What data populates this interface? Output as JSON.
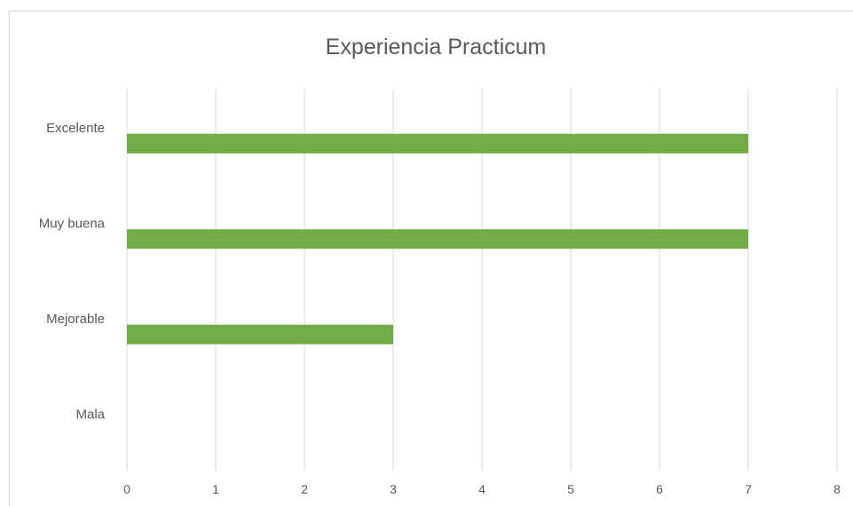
{
  "chart_data": {
    "type": "bar",
    "orientation": "horizontal",
    "title": "Experiencia Practicum",
    "categories": [
      "Excelente",
      "Muy buena",
      "Mejorable",
      "Mala"
    ],
    "values": [
      7,
      7,
      3,
      0
    ],
    "xlim": [
      0,
      8
    ],
    "x_ticks": [
      "0",
      "1",
      "2",
      "3",
      "4",
      "5",
      "6",
      "7",
      "8"
    ],
    "bar_color": "#70ad47",
    "grid": "vertical",
    "legend": "none"
  }
}
